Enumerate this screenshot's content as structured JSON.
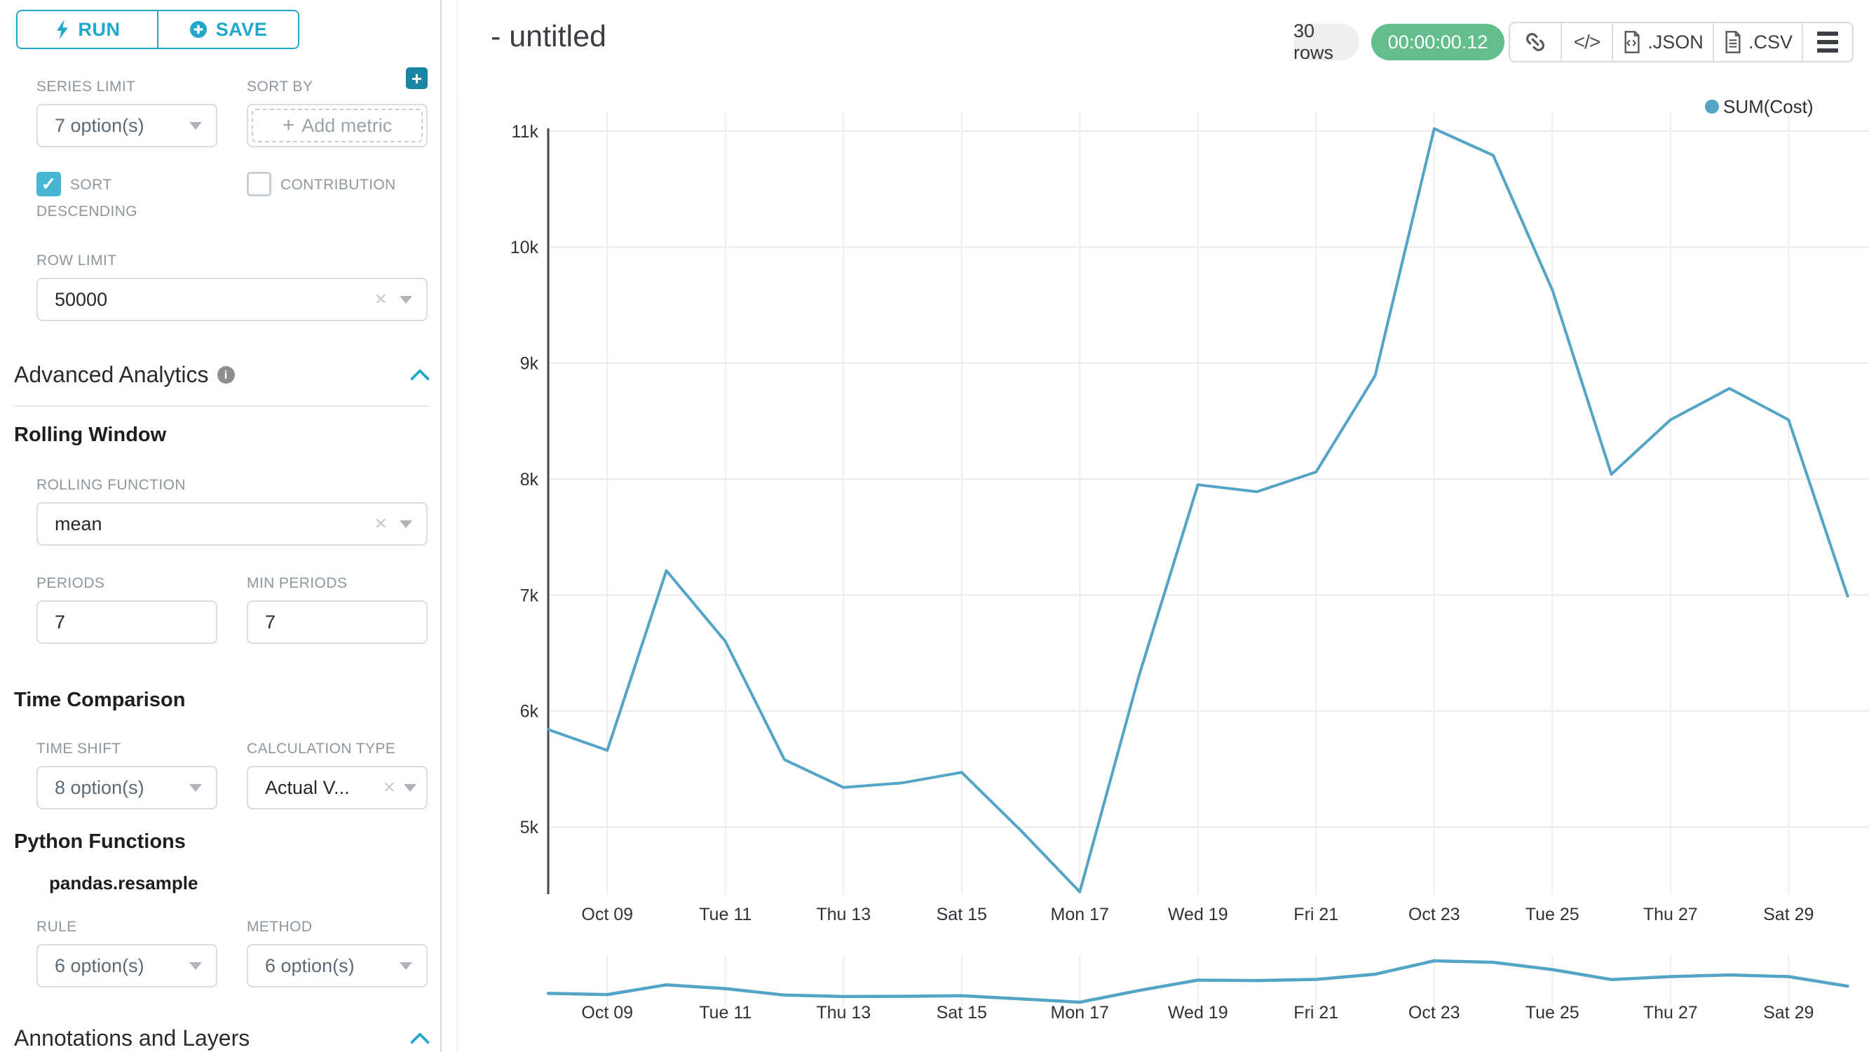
{
  "sidebar": {
    "run_label": "RUN",
    "save_label": "SAVE",
    "series_limit": {
      "label": "SERIES LIMIT",
      "value": "7 option(s)"
    },
    "sort_by": {
      "label": "SORT BY",
      "placeholder": "Add metric"
    },
    "sort_descending_label": "SORT DESCENDING",
    "contribution_label": "CONTRIBUTION",
    "row_limit": {
      "label": "ROW LIMIT",
      "value": "50000"
    },
    "advanced_analytics_title": "Advanced Analytics",
    "rolling_window_title": "Rolling Window",
    "rolling_function": {
      "label": "ROLLING FUNCTION",
      "value": "mean"
    },
    "periods": {
      "label": "PERIODS",
      "value": "7"
    },
    "min_periods": {
      "label": "MIN PERIODS",
      "value": "7"
    },
    "time_comparison_title": "Time Comparison",
    "time_shift": {
      "label": "TIME SHIFT",
      "value": "8 option(s)"
    },
    "calculation_type": {
      "label": "CALCULATION TYPE",
      "value": "Actual V..."
    },
    "python_functions_title": "Python Functions",
    "pandas_resample_label": "pandas.resample",
    "rule": {
      "label": "RULE",
      "value": "6 option(s)"
    },
    "method": {
      "label": "METHOD",
      "value": "6 option(s)"
    },
    "annotations_title": "Annotations and Layers"
  },
  "header": {
    "title": "- untitled",
    "rows_badge": "30 rows",
    "timer_badge": "00:00:00.12",
    "toolbar": {
      "json_label": ".JSON",
      "csv_label": ".CSV"
    }
  },
  "colors": {
    "accent": "#20A7C9",
    "accent_dark": "#1A85A0",
    "checkbox_checked": "#45B6D4",
    "success_badge": "#63BE8C",
    "line": "#54A4C6",
    "grid": "#EBEBEB",
    "axis": "#474747",
    "tick_text": "#2F3338"
  },
  "chart_data": {
    "type": "line",
    "title": "",
    "legend": [
      "SUM(Cost)"
    ],
    "legend_position": "top-right",
    "grid": true,
    "xlabel": "",
    "ylabel": "",
    "ylim": [
      4420,
      11180
    ],
    "y_tick_values": [
      5000,
      6000,
      7000,
      8000,
      9000,
      10000,
      11000
    ],
    "y_tick_labels": [
      "5k",
      "6k",
      "7k",
      "8k",
      "9k",
      "10k",
      "11k"
    ],
    "x_tick_labels": [
      "Oct 09",
      "Tue 11",
      "Thu 13",
      "Sat 15",
      "Mon 17",
      "Wed 19",
      "Fri 21",
      "Oct 23",
      "Tue 25",
      "Thu 27",
      "Sat 29"
    ],
    "series": [
      {
        "name": "SUM(Cost)",
        "x": [
          "Oct 08",
          "Oct 09",
          "Oct 10",
          "Oct 11",
          "Oct 12",
          "Oct 13",
          "Oct 14",
          "Oct 15",
          "Oct 16",
          "Oct 17",
          "Oct 18",
          "Oct 19",
          "Oct 20",
          "Oct 21",
          "Oct 22",
          "Oct 23",
          "Oct 24",
          "Oct 25",
          "Oct 26",
          "Oct 27",
          "Oct 28",
          "Oct 29",
          "Oct 30"
        ],
        "values": [
          5840,
          5660,
          7210,
          6600,
          5580,
          5340,
          5380,
          5470,
          4970,
          4440,
          6300,
          7950,
          7890,
          8060,
          8890,
          11020,
          10790,
          9630,
          8040,
          8510,
          8780,
          8510,
          6990
        ]
      }
    ],
    "mini_preview": {
      "shown": true,
      "x_tick_labels": [
        "Oct 09",
        "Tue 11",
        "Thu 13",
        "Sat 15",
        "Mon 17",
        "Wed 19",
        "Fri 21",
        "Oct 23",
        "Tue 25",
        "Thu 27",
        "Sat 29"
      ]
    }
  }
}
